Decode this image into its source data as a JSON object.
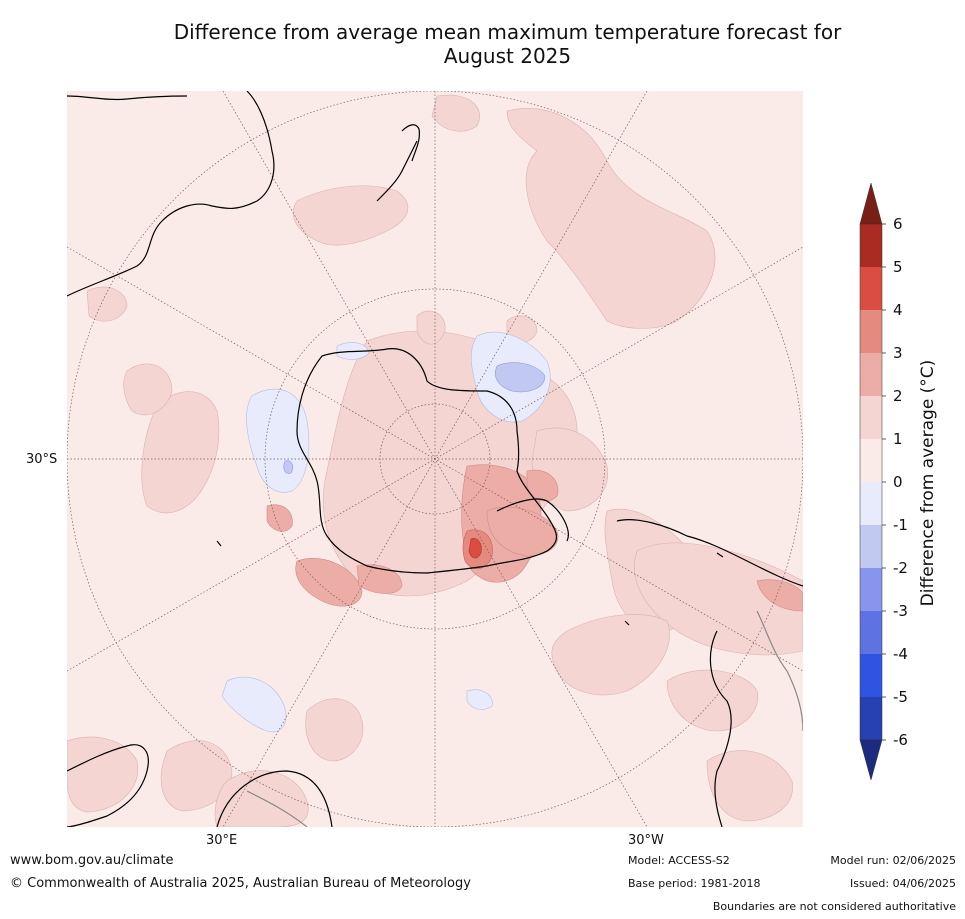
{
  "title": {
    "line1": "Difference from average mean maximum temperature forecast for",
    "line2": "August 2025"
  },
  "map": {
    "projection": "south polar stereographic",
    "graticule_labels": {
      "lat_left": "30°S",
      "lon_bottom_left": "30°E",
      "lon_bottom_right": "30°W"
    },
    "colors": {
      "ocean_background": "#fbebe8",
      "anomaly_0_1": "#fbebe8",
      "anomaly_1_2": "#f4d5d2",
      "anomaly_2_3": "#ecada6",
      "anomaly_3_4": "#e58a7f",
      "anomaly_4_5": "#d94e40",
      "anomaly_neg1_0": "#e8ebfb",
      "anomaly_neg2_neg1": "#c1c8f2",
      "coastline": "#000000"
    }
  },
  "colorbar": {
    "title": "Difference from average (°C)",
    "ticks": [
      "6",
      "5",
      "4",
      "3",
      "2",
      "1",
      "0",
      "-1",
      "-2",
      "-3",
      "-4",
      "-5",
      "-6"
    ],
    "bands": [
      "#aa2b22",
      "#d94e40",
      "#e58a7f",
      "#ecada6",
      "#f4d5d2",
      "#fbebe8",
      "#e8ebfb",
      "#c1c8f2",
      "#8796ec",
      "#5e72e2",
      "#2f54e1",
      "#2541b2"
    ],
    "top_arrow_color": "#7a1f16",
    "bottom_arrow_color": "#1c2a80"
  },
  "footer": {
    "website": "www.bom.gov.au/climate",
    "copyright": "© Commonwealth of Australia 2025, Australian Bureau of Meteorology",
    "model": "Model: ACCESS-S2",
    "base_period": "Base period: 1981-2018",
    "model_run": "Model run: 02/06/2025",
    "issued": "Issued: 04/06/2025",
    "disclaimer": "Boundaries are not considered authoritative"
  }
}
